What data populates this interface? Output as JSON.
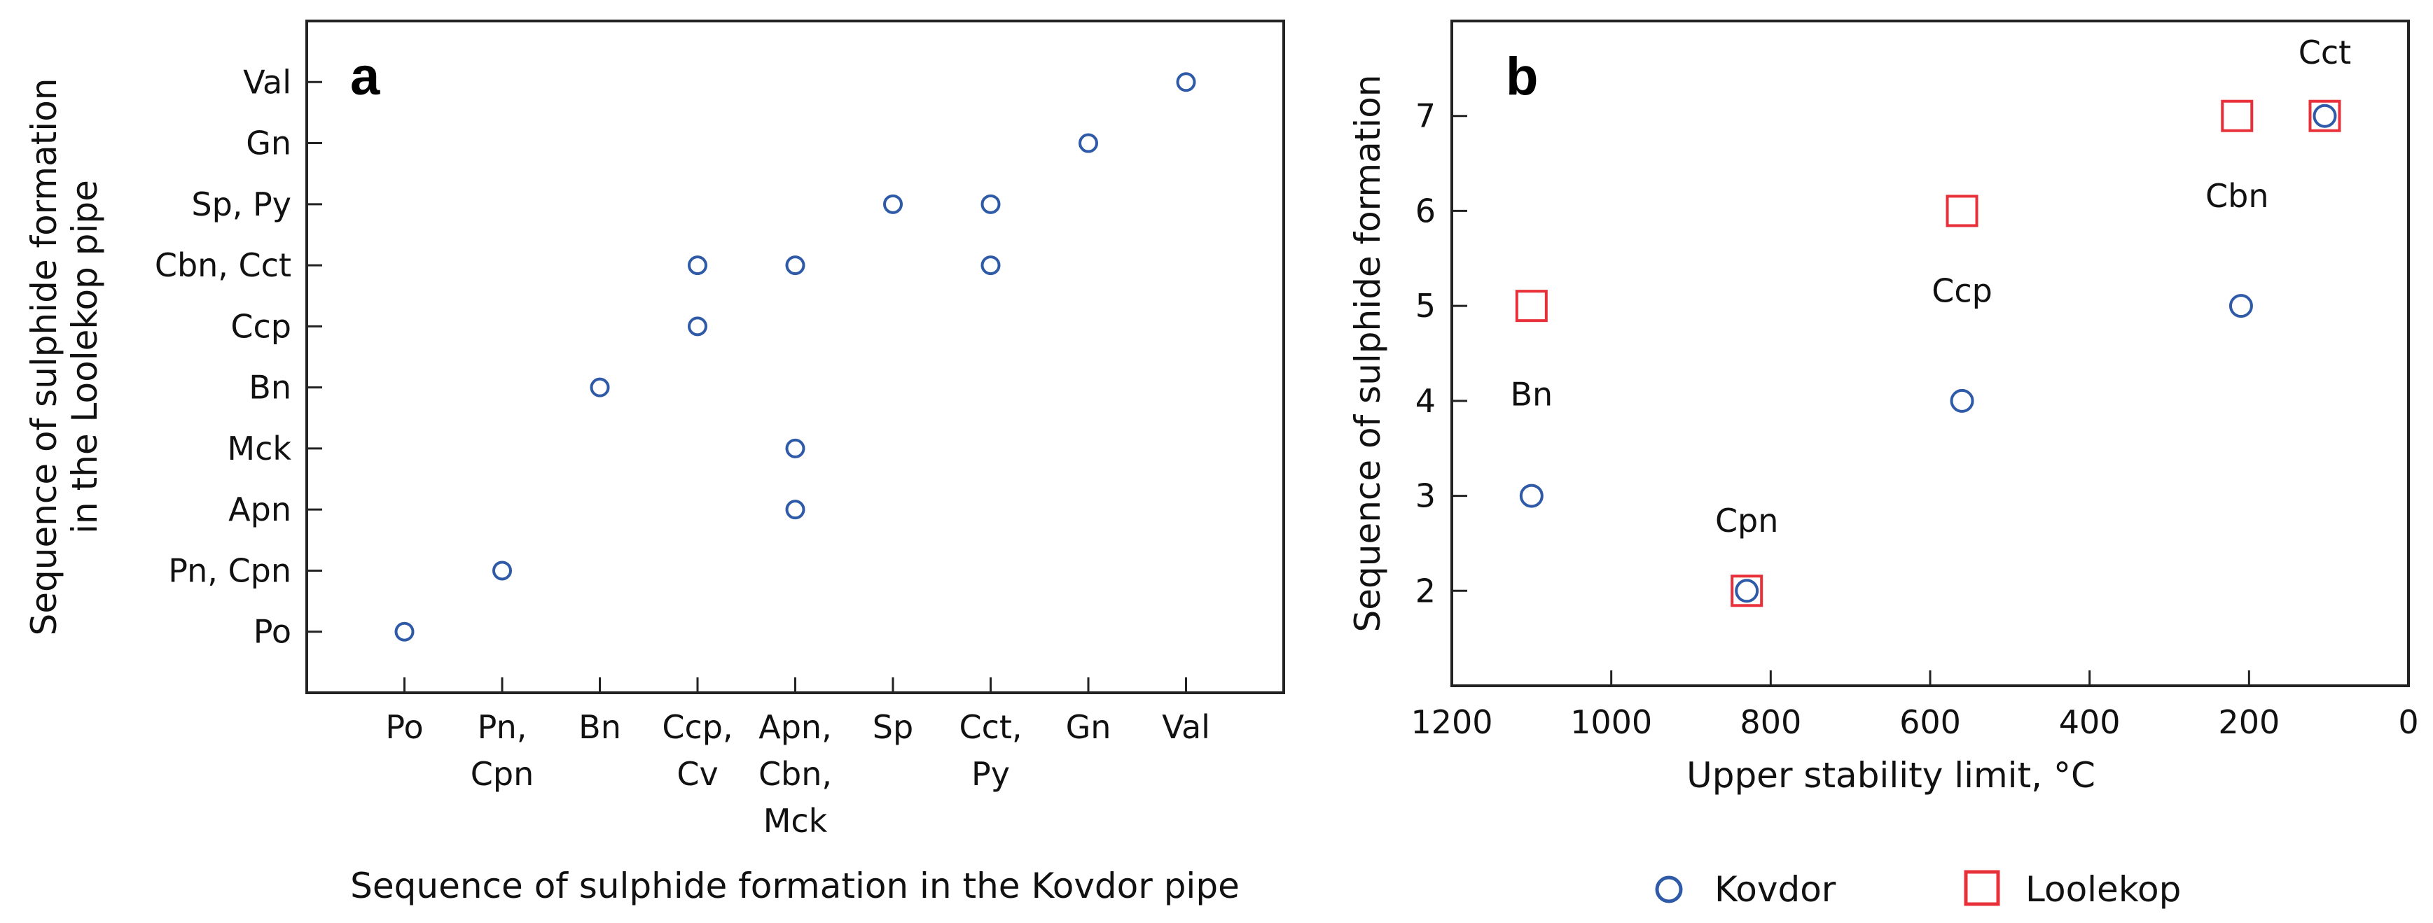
{
  "colors": {
    "kovdor": "#2e5aa8",
    "loolekop": "#e8303a",
    "axis": "#222222",
    "text": "#111111"
  },
  "chart_data": [
    {
      "type": "scatter",
      "panel": "a",
      "xlabel": "Sequence of sulphide formation in the Kovdor pipe",
      "ylabel_lines": [
        "Sequence of sulphide formation",
        "in the Loolekop pipe"
      ],
      "x_categories": [
        [
          "Po"
        ],
        [
          "Pn,",
          "Cpn"
        ],
        [
          "Bn"
        ],
        [
          "Ccp,",
          "Cv"
        ],
        [
          "Apn,",
          "Cbn,",
          "Mck"
        ],
        [
          "Sp"
        ],
        [
          "Cct,",
          "Py"
        ],
        [
          "Gn"
        ],
        [
          "Val"
        ]
      ],
      "y_categories": [
        "Po",
        "Pn, Cpn",
        "Apn",
        "Mck",
        "Bn",
        "Ccp",
        "Cbn, Cct",
        "Sp, Py",
        "Gn",
        "Val"
      ],
      "points": [
        {
          "x": 1,
          "y": 1
        },
        {
          "x": 2,
          "y": 2
        },
        {
          "x": 5,
          "y": 3
        },
        {
          "x": 5,
          "y": 4
        },
        {
          "x": 3,
          "y": 5
        },
        {
          "x": 4,
          "y": 6
        },
        {
          "x": 4,
          "y": 7
        },
        {
          "x": 5,
          "y": 7
        },
        {
          "x": 7,
          "y": 7
        },
        {
          "x": 6,
          "y": 8
        },
        {
          "x": 7,
          "y": 8
        },
        {
          "x": 8,
          "y": 9
        },
        {
          "x": 9,
          "y": 10
        }
      ],
      "xlim": [
        0,
        10
      ],
      "ylim": [
        0,
        11
      ]
    },
    {
      "type": "scatter",
      "panel": "b",
      "xlabel": "Upper stability limit, °C",
      "ylabel": "Sequence of sulphide formation",
      "xlim": [
        1200,
        0
      ],
      "ylim": [
        1,
        8
      ],
      "x_ticks": [
        1200,
        1000,
        800,
        600,
        400,
        200,
        0
      ],
      "y_ticks": [
        2,
        3,
        4,
        5,
        6,
        7
      ],
      "series": [
        {
          "name": "Kovdor",
          "marker": "circle",
          "points": [
            {
              "x": 1100,
              "y": 3
            },
            {
              "x": 830,
              "y": 2
            },
            {
              "x": 560,
              "y": 4
            },
            {
              "x": 210,
              "y": 5
            },
            {
              "x": 105,
              "y": 7
            }
          ]
        },
        {
          "name": "Loolekop",
          "marker": "square",
          "points": [
            {
              "x": 1100,
              "y": 5
            },
            {
              "x": 830,
              "y": 2
            },
            {
              "x": 560,
              "y": 6
            },
            {
              "x": 215,
              "y": 7
            },
            {
              "x": 105,
              "y": 7
            }
          ]
        }
      ],
      "annotations": [
        {
          "text": "Bn",
          "x": 1100,
          "y": 3.95
        },
        {
          "text": "Cpn",
          "x": 830,
          "y": 2.62
        },
        {
          "text": "Ccp",
          "x": 560,
          "y": 5.04
        },
        {
          "text": "Cbn",
          "x": 215,
          "y": 6.04
        },
        {
          "text": "Cct",
          "x": 105,
          "y": 7.55
        }
      ]
    }
  ],
  "legend": [
    {
      "name": "Kovdor",
      "marker": "circle"
    },
    {
      "name": "Loolekop",
      "marker": "square"
    }
  ]
}
